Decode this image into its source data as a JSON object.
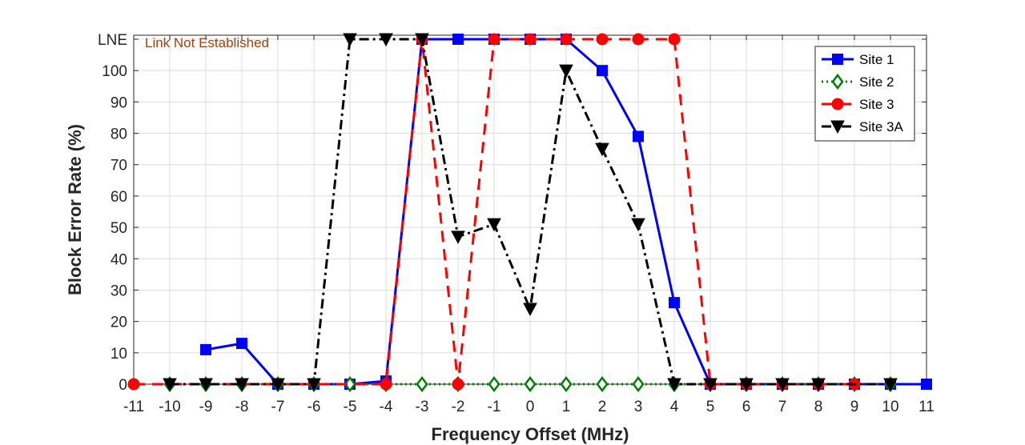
{
  "chart_data": {
    "type": "line",
    "xlabel": "Frequency Offset (MHz)",
    "ylabel": "Block Error Rate (%)",
    "xlim": [
      -11,
      11
    ],
    "ylim": [
      0,
      110
    ],
    "x_ticks": [
      -11,
      -10,
      -9,
      -8,
      -7,
      -6,
      -5,
      -4,
      -3,
      -2,
      -1,
      0,
      1,
      2,
      3,
      4,
      5,
      6,
      7,
      8,
      9,
      10,
      11
    ],
    "y_ticks": [
      {
        "value": 0,
        "label": "0"
      },
      {
        "value": 10,
        "label": "10"
      },
      {
        "value": 20,
        "label": "20"
      },
      {
        "value": 30,
        "label": "30"
      },
      {
        "value": 40,
        "label": "40"
      },
      {
        "value": 50,
        "label": "50"
      },
      {
        "value": 60,
        "label": "60"
      },
      {
        "value": 70,
        "label": "70"
      },
      {
        "value": 80,
        "label": "80"
      },
      {
        "value": 90,
        "label": "90"
      },
      {
        "value": 100,
        "label": "100"
      },
      {
        "value": 110,
        "label": "LNE"
      }
    ],
    "annotation": {
      "text": "Link Not Established",
      "color": "#a0410d"
    },
    "grid": true,
    "legend_position": "top-right",
    "series": [
      {
        "name": "Site 1",
        "color": "#0000ff",
        "dash": "solid",
        "marker": "square",
        "points": [
          [
            -9,
            11
          ],
          [
            -8,
            13
          ],
          [
            -7,
            0
          ],
          [
            -6,
            0
          ],
          [
            -5,
            0
          ],
          [
            -4,
            1
          ],
          [
            -3,
            110
          ],
          [
            -2,
            110
          ],
          [
            -1,
            110
          ],
          [
            0,
            110
          ],
          [
            1,
            110
          ],
          [
            2,
            100
          ],
          [
            3,
            79
          ],
          [
            4,
            26
          ],
          [
            5,
            0
          ],
          [
            6,
            0
          ],
          [
            7,
            0
          ],
          [
            8,
            0
          ],
          [
            9,
            0
          ],
          [
            10,
            0
          ],
          [
            11,
            0
          ]
        ]
      },
      {
        "name": "Site 2",
        "color": "#008000",
        "dash": "dotted",
        "marker": "diamond",
        "points": [
          [
            -10,
            0
          ],
          [
            -9,
            0
          ],
          [
            -8,
            0
          ],
          [
            -7,
            0
          ],
          [
            -6,
            0
          ],
          [
            -5,
            0
          ],
          [
            -4,
            0
          ],
          [
            -3,
            0
          ],
          [
            -2,
            0
          ],
          [
            -1,
            0
          ],
          [
            0,
            0
          ],
          [
            1,
            0
          ],
          [
            2,
            0
          ],
          [
            3,
            0
          ],
          [
            4,
            0
          ],
          [
            5,
            0
          ],
          [
            6,
            0
          ],
          [
            7,
            0
          ],
          [
            8,
            0
          ],
          [
            9,
            0
          ],
          [
            10,
            0
          ]
        ]
      },
      {
        "name": "Site 3",
        "color": "#ff0000",
        "dash": "dashed",
        "marker": "circle",
        "points": [
          [
            -11,
            0
          ],
          [
            -4,
            0
          ],
          [
            -3,
            110
          ],
          [
            -2,
            0
          ],
          [
            -1,
            110
          ],
          [
            0,
            110
          ],
          [
            1,
            110
          ],
          [
            2,
            110
          ],
          [
            3,
            110
          ],
          [
            4,
            110
          ],
          [
            5,
            0
          ],
          [
            6,
            0
          ],
          [
            7,
            0
          ],
          [
            8,
            0
          ],
          [
            9,
            0
          ]
        ]
      },
      {
        "name": "Site 3A",
        "color": "#000000",
        "dash": "dashdot",
        "marker": "triangle-down",
        "points": [
          [
            -10,
            0
          ],
          [
            -9,
            0
          ],
          [
            -8,
            0
          ],
          [
            -7,
            0
          ],
          [
            -6,
            0
          ],
          [
            -5,
            110
          ],
          [
            -4,
            110
          ],
          [
            -3,
            110
          ],
          [
            -2,
            47
          ],
          [
            -1,
            51
          ],
          [
            0,
            24
          ],
          [
            1,
            100
          ],
          [
            2,
            75
          ],
          [
            3,
            51
          ],
          [
            4,
            0
          ],
          [
            5,
            0
          ],
          [
            6,
            0
          ],
          [
            7,
            0
          ],
          [
            8,
            0
          ],
          [
            10,
            0
          ]
        ]
      }
    ]
  }
}
